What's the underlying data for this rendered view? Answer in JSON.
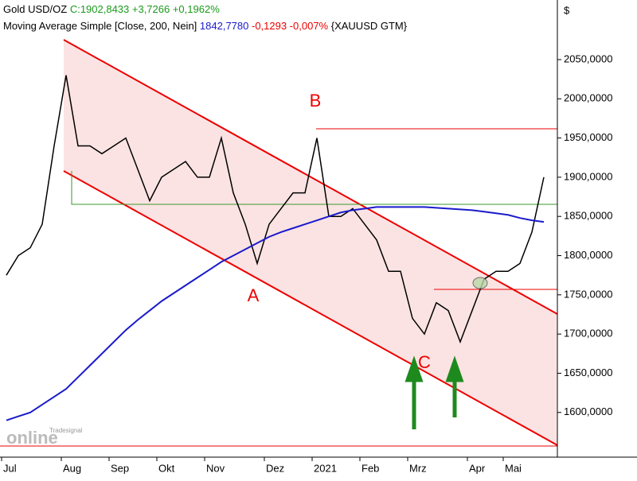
{
  "chart_data": {
    "type": "line",
    "currency": "$",
    "quote": "C:1902,8433 +3,7266 +0,1962%",
    "ma_last": "1842,7780",
    "ma_change": "-0,1293 -0,007%",
    "symbol": "{XAUUSD GTM}",
    "annotations": [
      "A",
      "B",
      "C"
    ],
    "logo": [
      "Tradesignal",
      "online"
    ],
    "categories": [
      "Jul",
      null,
      null,
      null,
      null,
      "Aug",
      null,
      null,
      null,
      "Sep",
      null,
      null,
      null,
      "Okt",
      null,
      null,
      null,
      "Nov",
      null,
      null,
      null,
      null,
      "Dez",
      null,
      null,
      null,
      "2021",
      null,
      null,
      null,
      "Feb",
      null,
      null,
      null,
      "Mrz",
      null,
      null,
      null,
      null,
      "Apr",
      null,
      null,
      "Mai",
      null,
      null,
      null
    ],
    "series": [
      {
        "name": "Gold USD/OZ",
        "color": "#000000",
        "values": [
          1775,
          1800,
          1810,
          1840,
          1940,
          2030,
          1940,
          1940,
          1930,
          1940,
          1950,
          1910,
          1870,
          1900,
          1910,
          1920,
          1900,
          1900,
          1950,
          1880,
          1840,
          1790,
          1840,
          1860,
          1880,
          1880,
          1950,
          1850,
          1850,
          1860,
          1840,
          1820,
          1780,
          1780,
          1720,
          1700,
          1740,
          1730,
          1690,
          1730,
          1770,
          1780,
          1780,
          1790,
          1830,
          1900
        ]
      },
      {
        "name": "Moving Average Simple [Close, 200, Nein]",
        "color": "#1a1acc",
        "values": [
          1590,
          1595,
          1600,
          1610,
          1620,
          1630,
          1645,
          1660,
          1675,
          1690,
          1705,
          1718,
          1730,
          1742,
          1752,
          1762,
          1772,
          1782,
          1792,
          1800,
          1808,
          1816,
          1824,
          1830,
          1835,
          1840,
          1845,
          1850,
          1855,
          1858,
          1860,
          1862,
          1862,
          1862,
          1862,
          1862,
          1861,
          1860,
          1859,
          1858,
          1856,
          1854,
          1852,
          1848,
          1845,
          1843
        ]
      }
    ],
    "ylim": [
      1543,
      2126
    ],
    "yticks": [
      {
        "value": 1600,
        "label": "1600,0000"
      },
      {
        "value": 1650,
        "label": "1650,0000"
      },
      {
        "value": 1700,
        "label": "1700,0000"
      },
      {
        "value": 1750,
        "label": "1750,0000"
      },
      {
        "value": 1800,
        "label": "1800,0000"
      },
      {
        "value": 1850,
        "label": "1850,0000"
      },
      {
        "value": 1900,
        "label": "1900,0000"
      },
      {
        "value": 1950,
        "label": "1950,0000"
      },
      {
        "value": 2000,
        "label": "2000,0000"
      },
      {
        "value": 2050,
        "label": "2050,0000"
      }
    ]
  }
}
